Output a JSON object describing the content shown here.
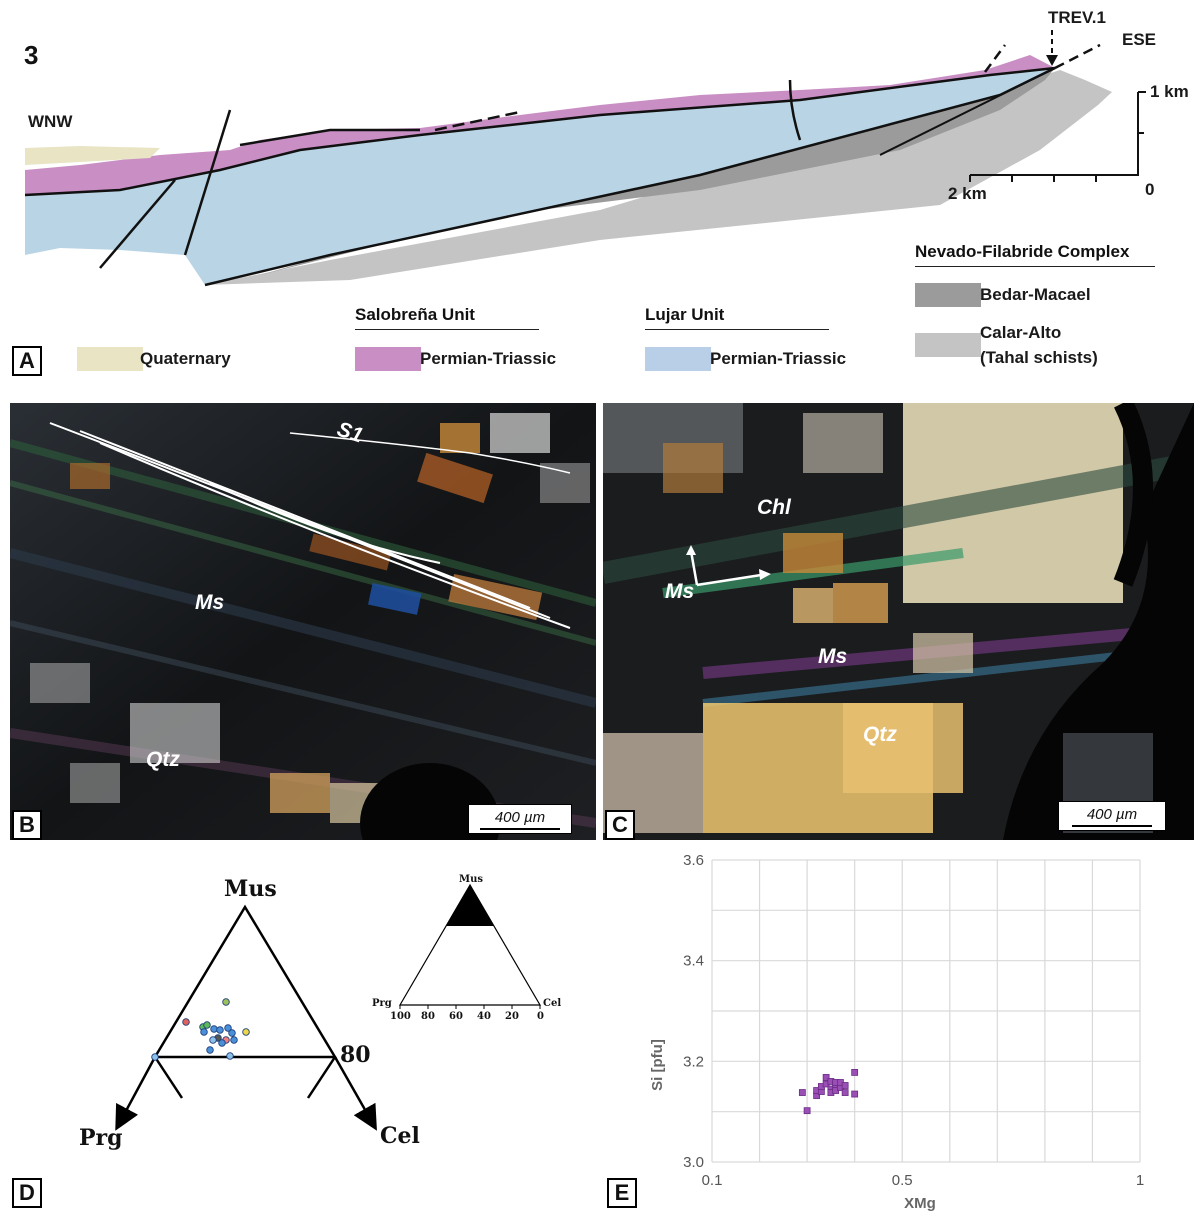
{
  "panel_a": {
    "figure_number": "3",
    "left_direction": "WNW",
    "right_direction": "ESE",
    "well_label": "TREV.1",
    "scale": {
      "vertical_label": "1 km",
      "horizontal_label": "2 km",
      "origin_label": "0"
    },
    "legend": {
      "quaternary": {
        "label": "Quaternary",
        "color": "#e8e4c4"
      },
      "salobrena": {
        "title": "Salobreña Unit",
        "label": "Permian-Triassic",
        "color": "#c98fc4"
      },
      "lujar": {
        "title": "Lujar Unit",
        "label": "Permian-Triassic",
        "color": "#b9cfe8"
      },
      "nevado": {
        "title": "Nevado-Filabride Complex",
        "bedar": {
          "label": "Bedar-Macael",
          "color": "#9b9b9b"
        },
        "calar_line1": "Calar-Alto",
        "calar_line2": "(Tahal schists)",
        "calar_color": "#c4c4c4"
      }
    }
  },
  "panel_b": {
    "labels": {
      "foliation": "S1",
      "muscovite": "Ms",
      "quartz": "Qtz"
    },
    "scale_bar": "400 µm"
  },
  "panel_c": {
    "labels": {
      "chlorite": "Chl",
      "muscovite_1": "Ms",
      "muscovite_2": "Ms",
      "quartz": "Qtz"
    },
    "scale_bar": "400 µm"
  },
  "panel_d": {
    "vertices": {
      "top": "Mus",
      "left": "Prg",
      "right": "Cel"
    },
    "side_tick": "80",
    "inset": {
      "top": "Mus",
      "left": "Prg",
      "right": "Cel",
      "ticks": [
        "100",
        "80",
        "60",
        "40",
        "20",
        "0"
      ]
    },
    "point_colors": [
      "#e0605c",
      "#5cb85c",
      "#4a90d9",
      "#e8d84a",
      "#9bc05c",
      "#f08080",
      "#555555",
      "#8dc0e8"
    ]
  },
  "panel_letters": {
    "a": "A",
    "b": "B",
    "c": "C",
    "d": "D",
    "e": "E"
  },
  "chart_data": {
    "type": "scatter",
    "xlabel": "XMg",
    "ylabel": "Si [pfu]",
    "xlim": [
      0.1,
      1
    ],
    "ylim": [
      3.0,
      3.6
    ],
    "x_ticks": [
      "0.1",
      "0.5",
      "1"
    ],
    "y_ticks": [
      "3.0",
      "3.2",
      "3.4",
      "3.6"
    ],
    "grid": true,
    "marker_color": "#9a4fb5",
    "series": [
      {
        "x": [
          0.29,
          0.3,
          0.32,
          0.32,
          0.33,
          0.33,
          0.34,
          0.34,
          0.35,
          0.35,
          0.35,
          0.36,
          0.36,
          0.36,
          0.37,
          0.37,
          0.38,
          0.38,
          0.4,
          0.4
        ],
        "y": [
          3.138,
          3.102,
          3.132,
          3.142,
          3.14,
          3.15,
          3.168,
          3.155,
          3.145,
          3.16,
          3.138,
          3.152,
          3.142,
          3.158,
          3.148,
          3.158,
          3.152,
          3.138,
          3.178,
          3.135
        ]
      }
    ]
  }
}
